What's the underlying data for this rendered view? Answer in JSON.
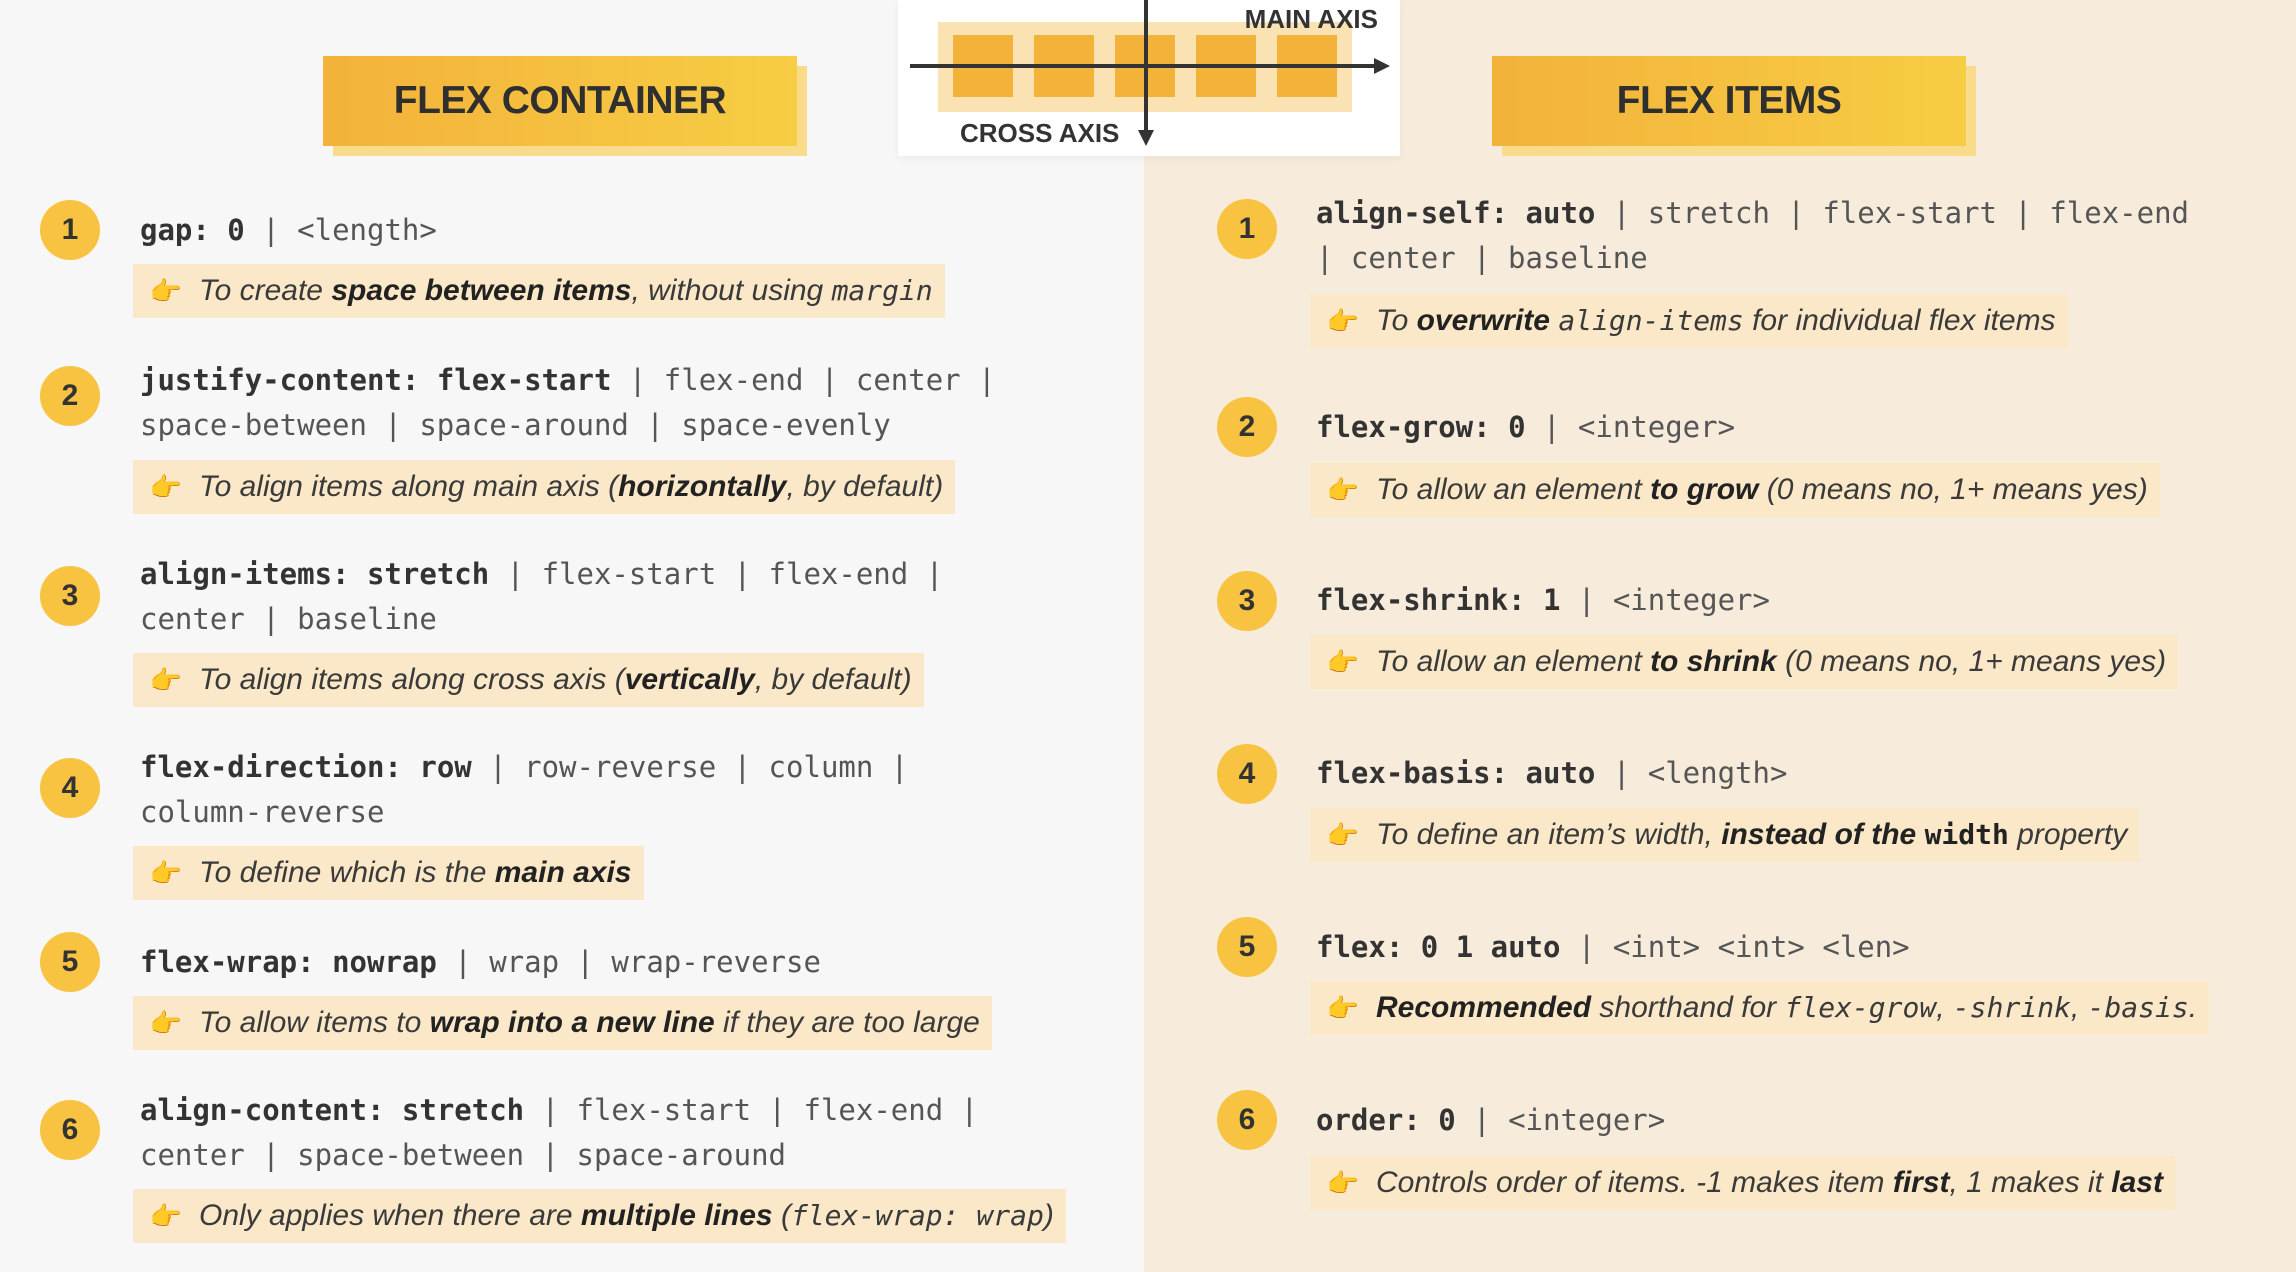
{
  "left_header": "FLEX CONTAINER",
  "right_header": "FLEX ITEMS",
  "axis": {
    "main": "MAIN AXIS",
    "cross": "CROSS AXIS"
  },
  "hand_glyph": "👉",
  "container": [
    {
      "num": "1",
      "prop": "gap:",
      "default": " 0",
      "values": " | <length>",
      "note": {
        "a": "To create ",
        "b": "space between items",
        "c": ", without using ",
        "code": "margin",
        "d": ""
      }
    },
    {
      "num": "2",
      "prop": "justify-content:",
      "default": " flex-start",
      "values": " | flex-end | center | space-between | space-around | space-evenly",
      "note": {
        "a": "To align items along main axis (",
        "b": "horizontally",
        "c": ", by default)",
        "code": "",
        "d": ""
      }
    },
    {
      "num": "3",
      "prop": "align-items:",
      "default": " stretch",
      "values": " | flex-start | flex-end | center | baseline",
      "note": {
        "a": "To align items along cross axis (",
        "b": "vertically",
        "c": ", by default)",
        "code": "",
        "d": ""
      }
    },
    {
      "num": "4",
      "prop": "flex-direction:",
      "default": " row",
      "values": " | row-reverse | column | column-reverse",
      "note": {
        "a": "To define which is the ",
        "b": "main axis",
        "c": "",
        "code": "",
        "d": ""
      }
    },
    {
      "num": "5",
      "prop": "flex-wrap:",
      "default": " nowrap",
      "values": " | wrap | wrap-reverse",
      "note": {
        "a": "To allow items to ",
        "b": "wrap into a new line",
        "c": " if they are too large",
        "code": "",
        "d": ""
      }
    },
    {
      "num": "6",
      "prop": "align-content:",
      "default": " stretch",
      "values": " | flex-start | flex-end | center | space-between | space-around",
      "note": {
        "a": "Only applies when there are ",
        "b": "multiple lines",
        "c": " (",
        "code": "flex-wrap: wrap",
        "d": ")"
      }
    }
  ],
  "items": [
    {
      "num": "1",
      "prop": "align-self:",
      "default": " auto",
      "values": " | stretch | flex-start | flex-end | center | baseline",
      "note": {
        "a": "To ",
        "b": "overwrite",
        "c": " ",
        "code": "align-items",
        "d": " for individual flex items"
      }
    },
    {
      "num": "2",
      "prop": "flex-grow:",
      "default": " 0",
      "values": " | <integer>",
      "note": {
        "a": "To allow an element ",
        "b": "to grow",
        "c": " (0 means no, 1+ means yes)",
        "code": "",
        "d": ""
      }
    },
    {
      "num": "3",
      "prop": "flex-shrink:",
      "default": " 1",
      "values": " | <integer>",
      "note": {
        "a": "To allow an element ",
        "b": "to shrink",
        "c": " (0 means no, 1+ means yes)",
        "code": "",
        "d": ""
      }
    },
    {
      "num": "4",
      "prop": "flex-basis:",
      "default": " auto",
      "values": " | <length>",
      "note": {
        "a": "To define an item’s width, ",
        "b": "instead of the ",
        "c": "",
        "code": "width",
        "d": " property"
      }
    },
    {
      "num": "5",
      "prop": "flex:",
      "default": " 0 1 auto",
      "values": " | <int> <int> <len>",
      "note": {
        "a": "",
        "b": "Recommended",
        "c": " shorthand for ",
        "code": "flex-grow",
        "d": ", ",
        "code2": "-shrink",
        "e": ", ",
        "code3": "-basis",
        "f": "."
      }
    },
    {
      "num": "6",
      "prop": "order:",
      "default": " 0",
      "values": " | <integer>",
      "note": {
        "a": "Controls order of items. -1 makes item ",
        "b": "first",
        "c": ", 1 makes it ",
        "code": "",
        "d": "",
        "b2": "last"
      }
    }
  ],
  "colors": {
    "accent": "#f7c340",
    "banner_start": "#f3b23a",
    "banner_end": "#f7cd44",
    "note_bg": "#fae8c8",
    "left_bg": "#f7f7f7",
    "right_bg": "#f7ecdb"
  }
}
